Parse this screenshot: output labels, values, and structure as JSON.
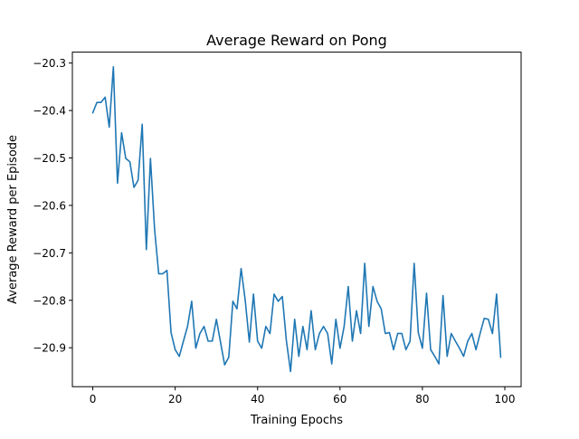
{
  "chart_data": {
    "type": "line",
    "title": "Average Reward on Pong",
    "xlabel": "Training Epochs",
    "ylabel": "Average Reward per Episode",
    "xlim": [
      -4.95,
      103.95
    ],
    "ylim": [
      -20.982,
      -20.277
    ],
    "xticks": [
      0,
      20,
      40,
      60,
      80,
      100
    ],
    "yticks": [
      -20.3,
      -20.4,
      -20.5,
      -20.6,
      -20.7,
      -20.8,
      -20.9
    ],
    "xtick_labels": [
      "0",
      "20",
      "40",
      "60",
      "80",
      "100"
    ],
    "ytick_labels": [
      "−20.3",
      "−20.4",
      "−20.5",
      "−20.6",
      "−20.7",
      "−20.8",
      "−20.9"
    ],
    "grid": false,
    "line_color": "#1f77b4",
    "series": [
      {
        "x": [
          0,
          1,
          2,
          3,
          4,
          5,
          6,
          7,
          8,
          9,
          10,
          11,
          12,
          13,
          14,
          15,
          16,
          17,
          18,
          19,
          20,
          21,
          22,
          23,
          24,
          25,
          26,
          27,
          28,
          29,
          30,
          31,
          32,
          33,
          34,
          35,
          36,
          37,
          38,
          39,
          40,
          41,
          42,
          43,
          44,
          45,
          46,
          47,
          48,
          49,
          50,
          51,
          52,
          53,
          54,
          55,
          56,
          57,
          58,
          59,
          60,
          61,
          62,
          63,
          64,
          65,
          66,
          67,
          68,
          69,
          70,
          71,
          72,
          73,
          74,
          75,
          76,
          77,
          78,
          79,
          80,
          81,
          82,
          83,
          84,
          85,
          86,
          87,
          88,
          89,
          90,
          91,
          92,
          93,
          94,
          95,
          96,
          97,
          98,
          99
        ],
        "y": [
          -20.405,
          -20.383,
          -20.383,
          -20.372,
          -20.435,
          -20.308,
          -20.553,
          -20.447,
          -20.501,
          -20.508,
          -20.562,
          -20.547,
          -20.429,
          -20.693,
          -20.501,
          -20.65,
          -20.744,
          -20.744,
          -20.737,
          -20.868,
          -20.904,
          -20.918,
          -20.886,
          -20.855,
          -20.802,
          -20.901,
          -20.87,
          -20.855,
          -20.886,
          -20.886,
          -20.84,
          -20.888,
          -20.936,
          -20.92,
          -20.802,
          -20.818,
          -20.733,
          -20.8,
          -20.888,
          -20.787,
          -20.886,
          -20.901,
          -20.855,
          -20.87,
          -20.787,
          -20.802,
          -20.792,
          -20.886,
          -20.95,
          -20.84,
          -20.918,
          -20.855,
          -20.904,
          -20.822,
          -20.904,
          -20.87,
          -20.855,
          -20.87,
          -20.934,
          -20.84,
          -20.901,
          -20.855,
          -20.771,
          -20.886,
          -20.822,
          -20.87,
          -20.722,
          -20.855,
          -20.771,
          -20.802,
          -20.818,
          -20.87,
          -20.868,
          -20.904,
          -20.87,
          -20.87,
          -20.904,
          -20.886,
          -20.722,
          -20.868,
          -20.901,
          -20.785,
          -20.904,
          -20.918,
          -20.934,
          -20.79,
          -20.918,
          -20.87,
          -20.886,
          -20.901,
          -20.918,
          -20.886,
          -20.87,
          -20.904,
          -20.87,
          -20.838,
          -20.84,
          -20.87,
          -20.787,
          -20.92
        ]
      }
    ]
  }
}
